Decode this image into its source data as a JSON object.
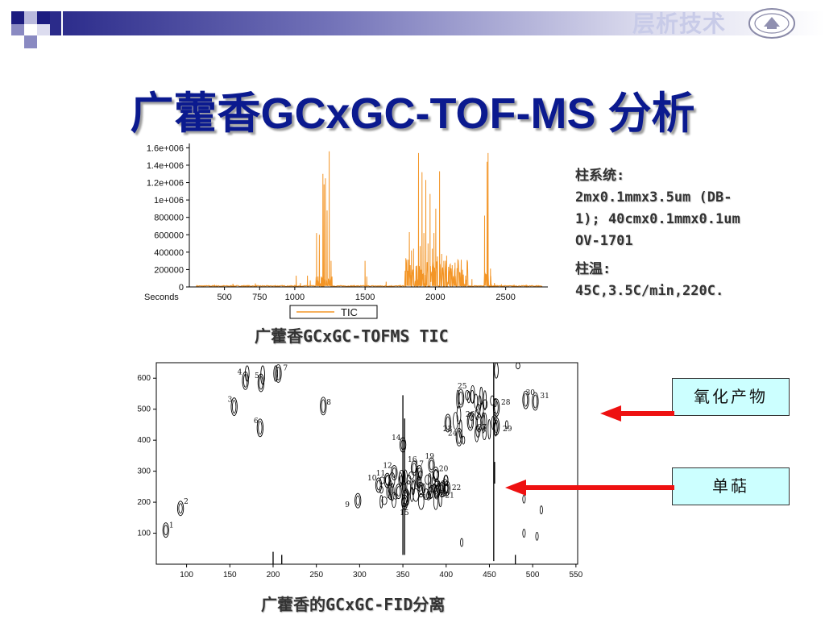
{
  "header": {
    "brand": "层析技术"
  },
  "title": "广藿香GCxGC-TOF-MS 分析",
  "captions": {
    "tic": "广藿香GCxGC-TOFMS TIC",
    "fid": "广藿香的GCxGC-FID分离"
  },
  "info": {
    "col_label": "柱系统:",
    "col_line1": "2mx0.1mmx3.5um (DB-",
    "col_line2": "1); 40cmx0.1mmx0.1um",
    "col_line3": "OV-1701",
    "temp_label": "柱温:",
    "temp_value": "45C,3.5C/min,220C."
  },
  "callouts": {
    "oxide": "氧化产物",
    "terpene": "单萜"
  },
  "colors": {
    "tic_line": "#f39526",
    "arrow": "#ee1111",
    "title": "#0b1a8f"
  },
  "chart_data": [
    {
      "type": "line",
      "title": "",
      "xlabel": "Seconds",
      "ylabel": "",
      "x_ticks": [
        500,
        750,
        1000,
        1500,
        2000,
        2500
      ],
      "y_ticks": [
        0,
        200000,
        400000,
        600000,
        800000,
        1000000,
        1200000,
        1400000,
        1600000
      ],
      "y_tick_labels": [
        "0",
        "200000",
        "400000",
        "600000",
        "800000",
        "1e+006",
        "1.2e+006",
        "1.4e+006",
        "1.6e+006"
      ],
      "xlim": [
        250,
        2800
      ],
      "ylim": [
        0,
        1650000
      ],
      "legend": {
        "position": "bottom",
        "entries": [
          "TIC"
        ]
      },
      "baseline": 12000,
      "peaks": [
        [
          430,
          25000
        ],
        [
          560,
          35000
        ],
        [
          720,
          40000
        ],
        [
          860,
          20000
        ],
        [
          1010,
          130000
        ],
        [
          1040,
          45000
        ],
        [
          1090,
          130000
        ],
        [
          1110,
          75000
        ],
        [
          1155,
          620000
        ],
        [
          1165,
          120000
        ],
        [
          1175,
          600000
        ],
        [
          1188,
          120000
        ],
        [
          1200,
          1300000
        ],
        [
          1208,
          1180000
        ],
        [
          1218,
          1250000
        ],
        [
          1230,
          880000
        ],
        [
          1245,
          1560000
        ],
        [
          1258,
          300000
        ],
        [
          1265,
          120000
        ],
        [
          1500,
          300000
        ],
        [
          1512,
          120000
        ],
        [
          1650,
          60000
        ],
        [
          1790,
          330000
        ],
        [
          1800,
          110000
        ],
        [
          1815,
          630000
        ],
        [
          1830,
          420000
        ],
        [
          1845,
          440000
        ],
        [
          1862,
          240000
        ],
        [
          1880,
          1540000
        ],
        [
          1892,
          470000
        ],
        [
          1905,
          1320000
        ],
        [
          1918,
          620000
        ],
        [
          1932,
          1230000
        ],
        [
          1948,
          500000
        ],
        [
          1962,
          1070000
        ],
        [
          1978,
          440000
        ],
        [
          1990,
          620000
        ],
        [
          2003,
          900000
        ],
        [
          2015,
          350000
        ],
        [
          2030,
          1330000
        ],
        [
          2045,
          380000
        ],
        [
          2060,
          300000
        ],
        [
          2080,
          360000
        ],
        [
          2100,
          180000
        ],
        [
          2120,
          250000
        ],
        [
          2140,
          280000
        ],
        [
          2170,
          110000
        ],
        [
          2195,
          100000
        ],
        [
          2215,
          130000
        ],
        [
          2260,
          90000
        ],
        [
          2350,
          820000
        ],
        [
          2368,
          1440000
        ],
        [
          2375,
          1540000
        ],
        [
          2392,
          210000
        ],
        [
          2420,
          45000
        ],
        [
          2470,
          30000
        ],
        [
          2560,
          25000
        ],
        [
          2650,
          15000
        ]
      ]
    },
    {
      "type": "contour",
      "title": "",
      "xlabel": "",
      "ylabel": "",
      "x_ticks": [
        100,
        150,
        200,
        250,
        300,
        350,
        400,
        450,
        500,
        550
      ],
      "y_ticks": [
        100,
        200,
        300,
        400,
        500,
        600
      ],
      "xlim": [
        65,
        552
      ],
      "ylim": [
        0,
        650
      ],
      "labeled_peaks": [
        {
          "label": "1",
          "x": 76,
          "y": 110
        },
        {
          "label": "2",
          "x": 93,
          "y": 180
        },
        {
          "label": "3",
          "x": 155,
          "y": 508
        },
        {
          "label": "4",
          "x": 168,
          "y": 592
        },
        {
          "label": "5",
          "x": 186,
          "y": 585
        },
        {
          "label": "6",
          "x": 185,
          "y": 440
        },
        {
          "label": "7",
          "x": 206,
          "y": 615
        },
        {
          "label": "8",
          "x": 258,
          "y": 510
        },
        {
          "label": "9",
          "x": 298,
          "y": 205
        },
        {
          "label": "10",
          "x": 322,
          "y": 255
        },
        {
          "label": "11",
          "x": 332,
          "y": 270
        },
        {
          "label": "12",
          "x": 340,
          "y": 295
        },
        {
          "label": "13",
          "x": 345,
          "y": 235
        },
        {
          "label": "14",
          "x": 350,
          "y": 385
        },
        {
          "label": "15",
          "x": 352,
          "y": 200
        },
        {
          "label": "16",
          "x": 363,
          "y": 310
        },
        {
          "label": "17",
          "x": 369,
          "y": 295
        },
        {
          "label": "18",
          "x": 371,
          "y": 240
        },
        {
          "label": "19",
          "x": 383,
          "y": 320
        },
        {
          "label": "20",
          "x": 388,
          "y": 290
        },
        {
          "label": "21",
          "x": 395,
          "y": 240
        },
        {
          "label": "22",
          "x": 401,
          "y": 245
        },
        {
          "label": "23",
          "x": 402,
          "y": 455
        },
        {
          "label": "24",
          "x": 415,
          "y": 410
        },
        {
          "label": "25",
          "x": 417,
          "y": 535
        },
        {
          "label": "26",
          "x": 428,
          "y": 460
        },
        {
          "label": "27",
          "x": 438,
          "y": 455
        },
        {
          "label": "28",
          "x": 458,
          "y": 505
        },
        {
          "label": "29",
          "x": 458,
          "y": 445
        },
        {
          "label": "30",
          "x": 492,
          "y": 530
        },
        {
          "label": "31",
          "x": 503,
          "y": 525
        }
      ]
    }
  ]
}
